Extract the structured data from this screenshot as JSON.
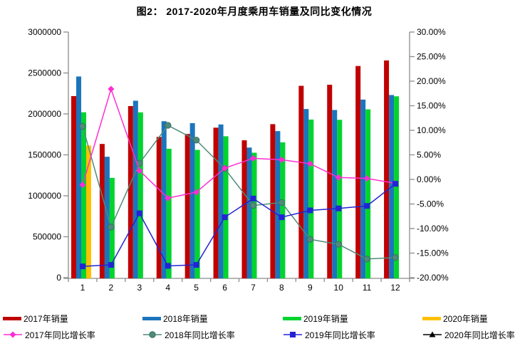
{
  "title": "图2： 2017-2020年月度乘用车销量及同比变化情况",
  "chart_data": {
    "type": "bar+line",
    "title": "图2： 2017-2020年月度乘用车销量及同比变化情况",
    "categories": [
      "1",
      "2",
      "3",
      "4",
      "5",
      "6",
      "7",
      "8",
      "9",
      "10",
      "11",
      "12"
    ],
    "grid": false,
    "legend_position": "bottom",
    "left_axis": {
      "min": 0,
      "max": 3000000,
      "step": 500000,
      "tick_labels": [
        "0",
        "500000",
        "1000000",
        "1500000",
        "2000000",
        "2500000",
        "3000000"
      ]
    },
    "right_axis": {
      "min": -20,
      "max": 30,
      "step": 5,
      "tick_labels": [
        "-20.00%",
        "-15.00%",
        "-10.00%",
        "-5.00%",
        "0.00%",
        "5.00%",
        "10.00%",
        "15.00%",
        "20.00%",
        "25.00%",
        "30.00%"
      ]
    },
    "bar_series": [
      {
        "name": "2017年销量",
        "color": "#C00000",
        "values": [
          2218000,
          1633000,
          2096000,
          1719000,
          1755000,
          1832000,
          1678000,
          1875000,
          2343000,
          2356000,
          2585000,
          2653000
        ]
      },
      {
        "name": "2018年销量",
        "color": "#1B75BC",
        "values": [
          2457000,
          1477000,
          2161000,
          1911000,
          1887000,
          1871000,
          1589000,
          1790000,
          2060000,
          2048000,
          2175000,
          2231000
        ]
      },
      {
        "name": "2019年销量",
        "color": "#00D42E",
        "values": [
          2020000,
          1219000,
          2019000,
          1575000,
          1561000,
          1727000,
          1526000,
          1653000,
          1931000,
          1928000,
          2056000,
          2215000
        ]
      },
      {
        "name": "2020年销量",
        "color": "#FFC000",
        "values": [
          1614000,
          null,
          null,
          null,
          null,
          null,
          null,
          null,
          null,
          null,
          null,
          null
        ]
      }
    ],
    "line_series": [
      {
        "name": "2017年同比增长率",
        "color": "#FF2DD2",
        "marker": "diamond",
        "values": [
          -1.1,
          18.4,
          1.8,
          -3.8,
          -2.6,
          2.3,
          4.3,
          4.0,
          3.2,
          0.4,
          0.2,
          -0.8
        ]
      },
      {
        "name": "2018年同比增长率",
        "color": "#4E8C7A",
        "marker": "circle",
        "values": [
          10.8,
          -9.7,
          3.3,
          11.0,
          8.0,
          2.2,
          -5.3,
          -4.7,
          -12.2,
          -13.2,
          -16.2,
          -15.9
        ]
      },
      {
        "name": "2019年同比增长率",
        "color": "#2323D6",
        "marker": "square",
        "values": [
          -17.7,
          -17.4,
          -6.9,
          -17.6,
          -17.4,
          -7.7,
          -3.9,
          -7.7,
          -6.3,
          -5.9,
          -5.4,
          -0.9
        ]
      },
      {
        "name": "2020年同比增长率",
        "color": "#000000",
        "marker": "triangle",
        "values": [
          null,
          null,
          null,
          null,
          null,
          null,
          null,
          null,
          null,
          null,
          null,
          null
        ]
      }
    ]
  }
}
